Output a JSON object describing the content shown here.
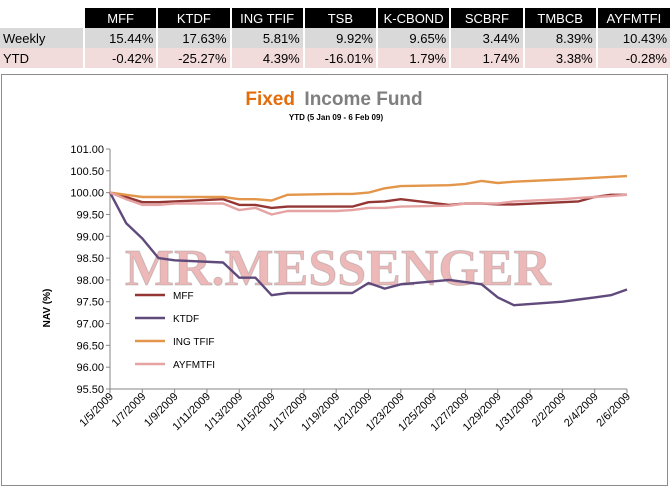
{
  "table": {
    "headers": [
      "MFF",
      "KTDF",
      "ING TFIF",
      "TSB",
      "K-CBOND",
      "SCBRF",
      "TMBCB",
      "AYFMTFI"
    ],
    "rows": [
      {
        "label": "Weekly",
        "values": [
          "15.44%",
          "17.63%",
          "5.81%",
          "9.92%",
          "9.65%",
          "3.44%",
          "8.39%",
          "10.43%"
        ]
      },
      {
        "label": "YTD",
        "values": [
          "-0.42%",
          "-25.27%",
          "4.39%",
          "-16.01%",
          "1.79%",
          "1.74%",
          "3.38%",
          "-0.28%"
        ]
      }
    ]
  },
  "watermark": "MR.MESSENGER",
  "chart_data": {
    "type": "line",
    "title_part1": "Fixed",
    "title_part2": "Income Fund",
    "subtitle": "YTD (5 Jan 09 - 6 Feb 09)",
    "xlabel": "",
    "ylabel": "NAV (%)",
    "ylim": [
      95.5,
      101.0
    ],
    "yticks": [
      "101.00",
      "100.50",
      "100.00",
      "99.50",
      "99.00",
      "98.50",
      "98.00",
      "97.50",
      "97.00",
      "96.50",
      "96.00",
      "95.50"
    ],
    "ytick_values": [
      101.0,
      100.5,
      100.0,
      99.5,
      99.0,
      98.5,
      98.0,
      97.5,
      97.0,
      96.5,
      96.0,
      95.5
    ],
    "grid": false,
    "legend_position": "bottom-left",
    "x_tick_labels": [
      "1/5/2009",
      "1/7/2009",
      "1/9/2009",
      "1/11/2009",
      "1/13/2009",
      "1/15/2009",
      "1/17/2009",
      "1/19/2009",
      "1/21/2009",
      "1/23/2009",
      "1/25/2009",
      "1/27/2009",
      "1/29/2009",
      "1/31/2009",
      "2/2/2009",
      "2/4/2009",
      "2/6/2009"
    ],
    "x": [
      "1/5/2009",
      "1/6/2009",
      "1/7/2009",
      "1/8/2009",
      "1/9/2009",
      "1/12/2009",
      "1/13/2009",
      "1/14/2009",
      "1/15/2009",
      "1/16/2009",
      "1/19/2009",
      "1/20/2009",
      "1/21/2009",
      "1/22/2009",
      "1/23/2009",
      "1/26/2009",
      "1/27/2009",
      "1/28/2009",
      "1/29/2009",
      "1/30/2009",
      "2/2/2009",
      "2/3/2009",
      "2/4/2009",
      "2/5/2009",
      "2/6/2009"
    ],
    "series": [
      {
        "name": "MFF",
        "color": "#943634",
        "values": [
          100.0,
          99.9,
          99.78,
          99.78,
          99.8,
          99.85,
          99.72,
          99.72,
          99.65,
          99.68,
          99.68,
          99.68,
          99.78,
          99.8,
          99.85,
          99.72,
          99.75,
          99.75,
          99.73,
          99.73,
          99.78,
          99.8,
          99.9,
          99.95,
          99.95
        ]
      },
      {
        "name": "KTDF",
        "color": "#604a7b",
        "values": [
          100.0,
          99.3,
          98.95,
          98.5,
          98.45,
          98.4,
          98.05,
          98.05,
          97.65,
          97.7,
          97.7,
          97.7,
          97.93,
          97.8,
          97.9,
          98.0,
          97.95,
          97.9,
          97.6,
          97.42,
          97.5,
          97.55,
          97.6,
          97.65,
          97.78
        ]
      },
      {
        "name": "ING TFIF",
        "color": "#e3964a",
        "values": [
          100.0,
          99.95,
          99.9,
          99.9,
          99.9,
          99.9,
          99.85,
          99.85,
          99.82,
          99.95,
          99.97,
          99.97,
          100.0,
          100.1,
          100.15,
          100.17,
          100.2,
          100.27,
          100.22,
          100.25,
          100.3,
          100.32,
          100.34,
          100.36,
          100.38
        ]
      },
      {
        "name": "AYFMTFI",
        "color": "#e6a3a3",
        "values": [
          100.0,
          99.85,
          99.72,
          99.72,
          99.75,
          99.75,
          99.6,
          99.65,
          99.5,
          99.58,
          99.58,
          99.6,
          99.65,
          99.65,
          99.68,
          99.7,
          99.75,
          99.75,
          99.75,
          99.8,
          99.85,
          99.88,
          99.9,
          99.92,
          99.95
        ]
      }
    ]
  }
}
